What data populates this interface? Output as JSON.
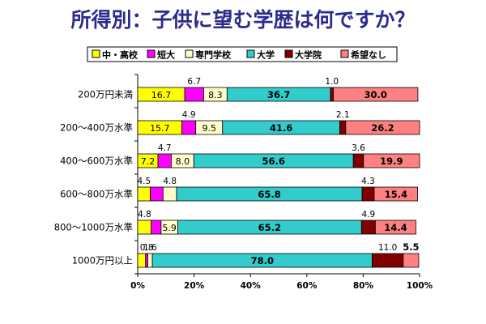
{
  "chart_data": {
    "type": "bar",
    "orientation": "horizontal",
    "stacked": true,
    "percent": true,
    "title": "所得別：子供に望む学歴は何ですか？",
    "categories": [
      "200万円未満",
      "200～400万水準",
      "400～600万水準",
      "600～800万水準",
      "800～1000万水準",
      "1000万円以上"
    ],
    "series": [
      {
        "name": "中・高校",
        "color": "#ffff00",
        "values": [
          16.7,
          15.7,
          7.2,
          4.5,
          4.8,
          2.8
        ]
      },
      {
        "name": "短大",
        "color": "#ff00ff",
        "values": [
          6.7,
          4.9,
          4.7,
          4.5,
          3.5,
          0.8
        ]
      },
      {
        "name": "専門学校",
        "color": "#ffffcc",
        "values": [
          8.3,
          9.5,
          8.0,
          4.8,
          5.9,
          1.6
        ]
      },
      {
        "name": "大学",
        "color": "#33cccc",
        "values": [
          36.7,
          41.6,
          56.6,
          65.8,
          65.2,
          78.0
        ]
      },
      {
        "name": "大学院",
        "color": "#800000",
        "values": [
          1.0,
          2.1,
          3.6,
          4.3,
          4.9,
          11.0
        ]
      },
      {
        "name": "希望なし",
        "color": "#ff8080",
        "values": [
          30.0,
          26.2,
          19.9,
          15.4,
          14.4,
          5.5
        ]
      }
    ],
    "xlim": [
      0,
      100
    ],
    "xticks": [
      "0%",
      "20%",
      "40%",
      "60%",
      "80%",
      "100%"
    ],
    "legend": "top",
    "grid": false,
    "labels": [
      [
        {
          "text": "16.7",
          "pos": "in"
        },
        {
          "text": "6.7",
          "pos": "above"
        },
        {
          "text": "8.3",
          "pos": "in"
        },
        {
          "text": "36.7",
          "pos": "in",
          "bold": true
        },
        {
          "text": "1.0",
          "pos": "above"
        },
        {
          "text": "30.0",
          "pos": "in",
          "bold": true
        }
      ],
      [
        {
          "text": "15.7",
          "pos": "in"
        },
        {
          "text": "4.9",
          "pos": "above"
        },
        {
          "text": "9.5",
          "pos": "in"
        },
        {
          "text": "41.6",
          "pos": "in",
          "bold": true
        },
        {
          "text": "2.1",
          "pos": "above"
        },
        {
          "text": "26.2",
          "pos": "in",
          "bold": true
        }
      ],
      [
        {
          "text": "7.2",
          "pos": "in"
        },
        {
          "text": "4.7",
          "pos": "above"
        },
        {
          "text": "8.0",
          "pos": "in"
        },
        {
          "text": "56.6",
          "pos": "in",
          "bold": true
        },
        {
          "text": "3.6",
          "pos": "above"
        },
        {
          "text": "19.9",
          "pos": "in",
          "bold": true
        }
      ],
      [
        {
          "text": "4.5",
          "pos": "above"
        },
        null,
        {
          "text": "4.8",
          "pos": "above"
        },
        {
          "text": "65.8",
          "pos": "in",
          "bold": true
        },
        {
          "text": "4.3",
          "pos": "above"
        },
        {
          "text": "15.4",
          "pos": "in",
          "bold": true
        }
      ],
      [
        {
          "text": "4.8",
          "pos": "above"
        },
        null,
        {
          "text": "5.9",
          "pos": "in"
        },
        {
          "text": "65.2",
          "pos": "in",
          "bold": true
        },
        {
          "text": "4.9",
          "pos": "above"
        },
        {
          "text": "14.4",
          "pos": "in",
          "bold": true
        }
      ],
      [
        null,
        {
          "text": "0.8",
          "pos": "above"
        },
        {
          "text": "1.6",
          "pos": "above"
        },
        {
          "text": "78.0",
          "pos": "in",
          "bold": true
        },
        {
          "text": "11.0",
          "pos": "above"
        },
        {
          "text": "5.5",
          "pos": "above",
          "bold": true
        }
      ]
    ]
  }
}
